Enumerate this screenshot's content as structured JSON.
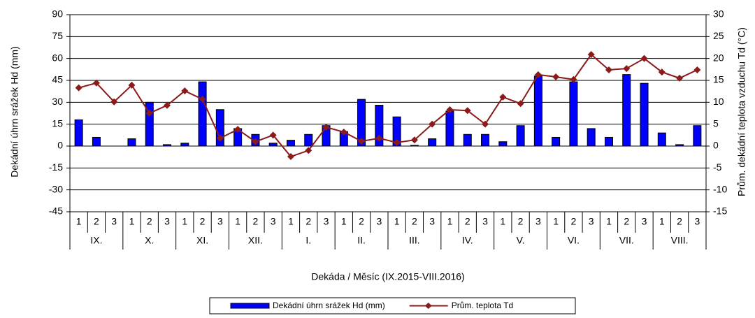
{
  "chart_data": {
    "type": "bar_line",
    "x_label": "Dekáda / Měsíc  (IX.2015-VIII.2016)",
    "y_label": "Dekádní úhrn srážek Hd (mm)",
    "y2_label": "Prům. dekádní teplota vzduchu Td (°C)",
    "categories": [
      "1",
      "2",
      "3",
      "1",
      "2",
      "3",
      "1",
      "2",
      "3",
      "1",
      "2",
      "3",
      "1",
      "2",
      "3",
      "1",
      "2",
      "3",
      "1",
      "2",
      "3",
      "1",
      "2",
      "3",
      "1",
      "2",
      "3",
      "1",
      "2",
      "3",
      "1",
      "2",
      "3",
      "1",
      "2",
      "3"
    ],
    "groups": [
      "IX.",
      "X.",
      "XI.",
      "XII.",
      "I.",
      "II.",
      "III.",
      "IV.",
      "V.",
      "VI.",
      "VII.",
      "VIII."
    ],
    "series": [
      {
        "name": "Dekádní úhrn srážek Hd (mm)",
        "type": "bar",
        "color": "#0000ff",
        "values": [
          18,
          6,
          0,
          5,
          30,
          1,
          2,
          44,
          25,
          12,
          8,
          2,
          4,
          8,
          14,
          10,
          32,
          28,
          20,
          0.5,
          5,
          24,
          8,
          8,
          3,
          14,
          48,
          6,
          44,
          12,
          6,
          49,
          43,
          9,
          1,
          14
        ]
      },
      {
        "name": "Prům. teplota Td",
        "type": "line",
        "axis": "y2",
        "color": "#8b1a1a",
        "values": [
          13.3,
          14.4,
          10.1,
          13.9,
          7.5,
          9.3,
          12.6,
          10.7,
          1.8,
          3.8,
          1,
          2.5,
          -2.4,
          -1,
          4.3,
          3.2,
          1.1,
          1.8,
          0.8,
          1.4,
          5,
          8.3,
          8.1,
          5,
          11.2,
          9.7,
          16.3,
          15.8,
          15.2,
          20.9,
          17.4,
          17.7,
          20,
          16.9,
          15.5,
          17.4
        ]
      }
    ],
    "ylim": [
      -45,
      90
    ],
    "yticks": [
      -45,
      -30,
      -15,
      0,
      15,
      30,
      45,
      60,
      75,
      90
    ],
    "y2lim": [
      -15,
      30
    ],
    "y2ticks": [
      -15,
      -10,
      -5,
      0,
      5,
      10,
      15,
      20,
      25,
      30
    ],
    "grid": true,
    "legend": "bottom"
  }
}
